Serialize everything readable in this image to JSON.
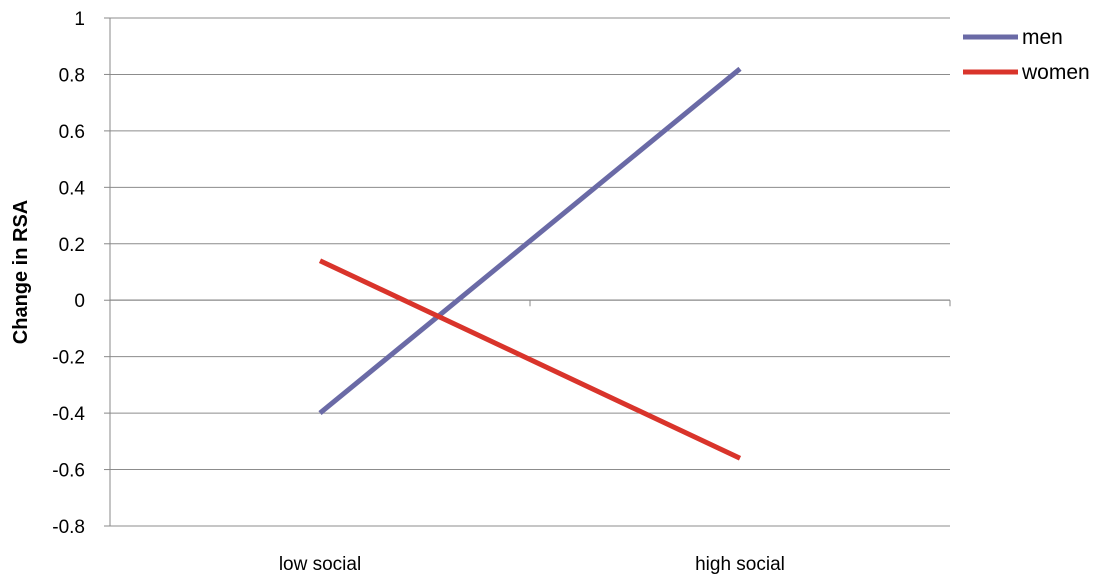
{
  "chart_data": {
    "type": "line",
    "title": "",
    "xlabel": "",
    "ylabel": "Change in RSA",
    "categories": [
      "low social",
      "high social"
    ],
    "series": [
      {
        "name": "men",
        "values": [
          -0.4,
          0.82
        ],
        "color": "#6a6aa6"
      },
      {
        "name": "women",
        "values": [
          0.14,
          -0.56
        ],
        "color": "#d9342b"
      }
    ],
    "ylim": [
      -0.8,
      1
    ],
    "yticks": [
      "1",
      "0.8",
      "0.6",
      "0.4",
      "0.2",
      "0",
      "-0.2",
      "-0.4",
      "-0.6",
      "-0.8"
    ],
    "ytick_values": [
      1,
      0.8,
      0.6,
      0.4,
      0.2,
      0,
      -0.2,
      -0.4,
      -0.6,
      -0.8
    ],
    "grid": true,
    "legend": "top-right"
  }
}
